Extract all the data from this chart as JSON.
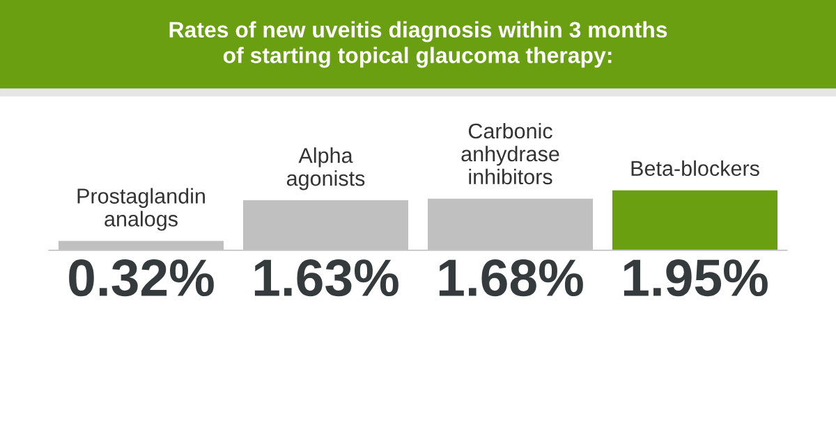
{
  "chart_data": {
    "type": "bar",
    "title": "Rates of new uveitis diagnosis within 3 months\nof starting topical glaucoma therapy:",
    "categories": [
      "Prostaglandin\nanalogs",
      "Alpha\nagonists",
      "Carbonic\nanhydrase\ninhibitors",
      "Beta-blockers"
    ],
    "values": [
      0.32,
      1.63,
      1.68,
      1.95
    ],
    "colors": [
      "#c0c0c0",
      "#c0c0c0",
      "#c0c0c0",
      "#6a9f12"
    ],
    "value_labels": [
      "0.32%",
      "1.63%",
      "1.68%",
      "1.95%"
    ]
  }
}
